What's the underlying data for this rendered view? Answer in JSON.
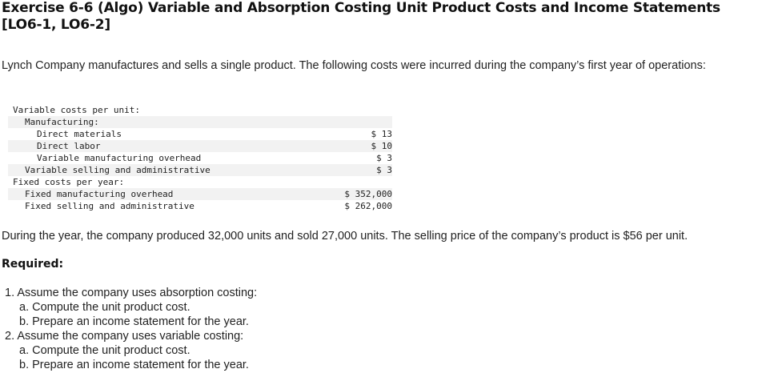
{
  "title": "Exercise 6-6 (Algo) Variable and Absorption Costing Unit Product Costs and Income Statements [LO6-1, LO6-2]",
  "intro": "Lynch Company manufactures and sells a single product. The following costs were incurred during the company’s first year of operations:",
  "cost_table": {
    "variable_header": "Variable costs per unit:",
    "manufacturing_header": "Manufacturing:",
    "direct_materials": {
      "label": "Direct materials",
      "value": "$ 13"
    },
    "direct_labor": {
      "label": "Direct labor",
      "value": "$ 10"
    },
    "variable_mfg_overhead": {
      "label": "Variable manufacturing overhead",
      "value": "$ 3"
    },
    "variable_selling_admin": {
      "label": "Variable selling and administrative",
      "value": "$ 3"
    },
    "fixed_header": "Fixed costs per year:",
    "fixed_mfg_overhead": {
      "label": "Fixed manufacturing overhead",
      "value": "$ 352,000"
    },
    "fixed_selling_admin": {
      "label": "Fixed selling and administrative",
      "value": "$ 262,000"
    }
  },
  "paragraph": "During the year, the company produced 32,000 units and sold 27,000 units. The selling price of the company’s product is $56 per unit.",
  "required_heading": "Required:",
  "requirements": [
    "1. Assume the company uses absorption costing:",
    "a. Compute the unit product cost.",
    "b. Prepare an income statement for the year.",
    "2. Assume the company uses variable costing:",
    "a. Compute the unit product cost.",
    "b. Prepare an income statement for the year."
  ]
}
